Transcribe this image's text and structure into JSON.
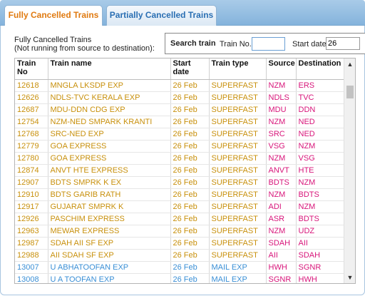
{
  "tabs": [
    {
      "label": "Fully Cancelled Trains",
      "active": true
    },
    {
      "label": "Partially Cancelled Trains",
      "active": false
    }
  ],
  "caption": {
    "line1": "Fully Cancelled Trains",
    "line2": "(Not running from source to destination):"
  },
  "search": {
    "title": "Search train",
    "train_no_label": "Train No.",
    "train_no_value": "",
    "start_date_label": "Start date",
    "start_date_value": "26"
  },
  "table": {
    "headers": [
      "Train\nNo",
      "Train name",
      "Start\ndate",
      "Train type",
      "Source",
      "Destination"
    ],
    "rows": [
      {
        "no": "12618",
        "name": "MNGLA LKSDP EXP",
        "date": "26 Feb",
        "type": "SUPERFAST",
        "src": "NZM",
        "dst": "ERS"
      },
      {
        "no": "12626",
        "name": "NDLS-TVC KERALA EXP",
        "date": "26 Feb",
        "type": "SUPERFAST",
        "src": "NDLS",
        "dst": "TVC"
      },
      {
        "no": "12687",
        "name": "MDU-DDN CDG EXP",
        "date": "26 Feb",
        "type": "SUPERFAST",
        "src": "MDU",
        "dst": "DDN"
      },
      {
        "no": "12754",
        "name": "NZM-NED SMPARK KRANTI",
        "date": "26 Feb",
        "type": "SUPERFAST",
        "src": "NZM",
        "dst": "NED"
      },
      {
        "no": "12768",
        "name": "SRC-NED EXP",
        "date": "26 Feb",
        "type": "SUPERFAST",
        "src": "SRC",
        "dst": "NED"
      },
      {
        "no": "12779",
        "name": "GOA EXPRESS",
        "date": "26 Feb",
        "type": "SUPERFAST",
        "src": "VSG",
        "dst": "NZM"
      },
      {
        "no": "12780",
        "name": "GOA EXPRESS",
        "date": "26 Feb",
        "type": "SUPERFAST",
        "src": "NZM",
        "dst": "VSG"
      },
      {
        "no": "12874",
        "name": "ANVT HTE EXPRESS",
        "date": "26 Feb",
        "type": "SUPERFAST",
        "src": "ANVT",
        "dst": "HTE"
      },
      {
        "no": "12907",
        "name": "BDTS SMPRK K EX",
        "date": "26 Feb",
        "type": "SUPERFAST",
        "src": "BDTS",
        "dst": "NZM"
      },
      {
        "no": "12910",
        "name": "BDTS GARIB RATH",
        "date": "26 Feb",
        "type": "SUPERFAST",
        "src": "NZM",
        "dst": "BDTS"
      },
      {
        "no": "12917",
        "name": "GUJARAT SMPRK K",
        "date": "26 Feb",
        "type": "SUPERFAST",
        "src": "ADI",
        "dst": "NZM"
      },
      {
        "no": "12926",
        "name": "PASCHIM EXPRESS",
        "date": "26 Feb",
        "type": "SUPERFAST",
        "src": "ASR",
        "dst": "BDTS"
      },
      {
        "no": "12963",
        "name": "MEWAR EXPRESS",
        "date": "26 Feb",
        "type": "SUPERFAST",
        "src": "NZM",
        "dst": "UDZ"
      },
      {
        "no": "12987",
        "name": "SDAH AII SF EXP",
        "date": "26 Feb",
        "type": "SUPERFAST",
        "src": "SDAH",
        "dst": "AII"
      },
      {
        "no": "12988",
        "name": "AII SDAH SF EXP",
        "date": "26 Feb",
        "type": "SUPERFAST",
        "src": "AII",
        "dst": "SDAH"
      },
      {
        "no": "13007",
        "name": "U ABHATOOFAN EXP",
        "date": "26 Feb",
        "type": "MAIL EXP",
        "src": "HWH",
        "dst": "SGNR"
      },
      {
        "no": "13008",
        "name": "U A TOOFAN EXP",
        "date": "26 Feb",
        "type": "MAIL EXP",
        "src": "SGNR",
        "dst": "HWH"
      }
    ]
  },
  "colors": {
    "active_tab_text": "#e07a10",
    "inactive_tab_text": "#2a6fb3",
    "superfast_text": "#c8900c",
    "mail_exp_text": "#3a8fd6",
    "station_text": "#d8157a"
  },
  "icons": {
    "scroll_up": "triangle-up-icon",
    "scroll_down": "triangle-down-icon"
  }
}
